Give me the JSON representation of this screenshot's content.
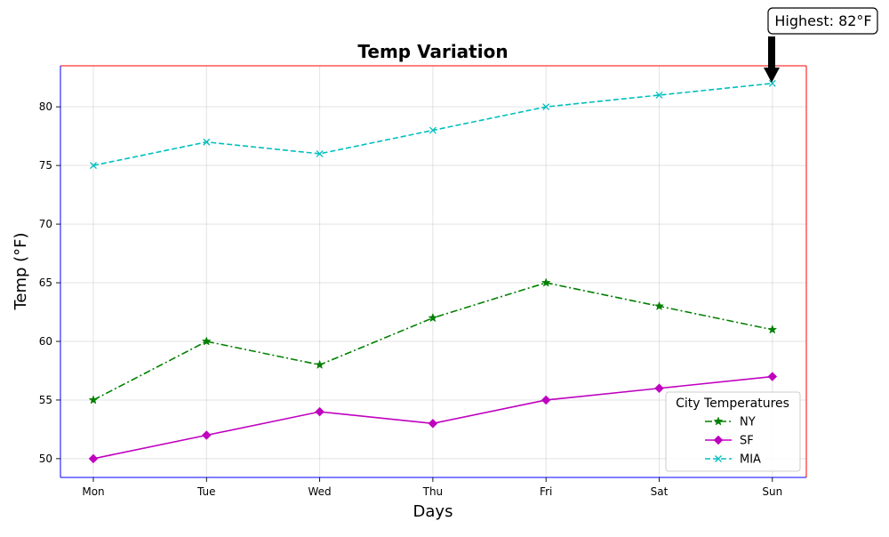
{
  "chart_data": {
    "type": "line",
    "title": "Temp Variation",
    "xlabel": "Days",
    "ylabel": "Temp (°F)",
    "categories": [
      "Mon",
      "Tue",
      "Wed",
      "Thu",
      "Fri",
      "Sat",
      "Sun"
    ],
    "ylim": [
      48.4,
      83.5
    ],
    "yticks": [
      50,
      55,
      60,
      65,
      70,
      75,
      80
    ],
    "grid": true,
    "legend": {
      "title": "City Temperatures",
      "placement": "lower-right"
    },
    "series": [
      {
        "name": "NY",
        "values": [
          55,
          60,
          58,
          62,
          65,
          63,
          61
        ],
        "color": "#008000",
        "linestyle": "dashdot",
        "marker": "star"
      },
      {
        "name": "SF",
        "values": [
          50,
          52,
          54,
          53,
          55,
          56,
          57
        ],
        "color": "#bf00bf",
        "linestyle": "solid",
        "marker": "diamond"
      },
      {
        "name": "MIA",
        "values": [
          75,
          77,
          76,
          78,
          80,
          81,
          82
        ],
        "color": "#00bfbf",
        "linestyle": "dashed",
        "marker": "x"
      }
    ],
    "annotations": [
      {
        "text": "Highest: 82°F",
        "x": "Sun",
        "y": 82,
        "series": "MIA",
        "arrow": true
      }
    ],
    "spine_colors": {
      "left": "#0000ff",
      "top": "#ff0000",
      "right": "#ff0000",
      "bottom": "#0000ff"
    }
  }
}
